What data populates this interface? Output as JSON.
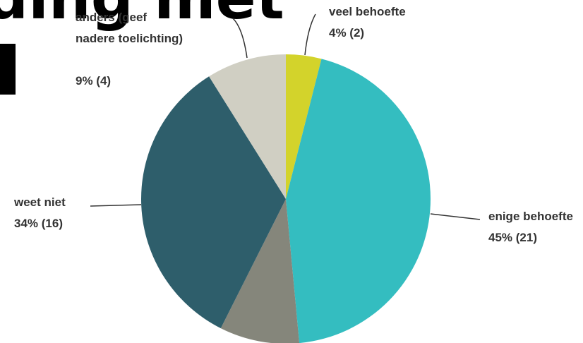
{
  "heading": "ding met",
  "chart_data": {
    "type": "pie",
    "categories": [
      "veel behoefte",
      "enige behoefte",
      null,
      "weet niet",
      "anders (geef nadere toelichting)"
    ],
    "values": [
      4,
      45,
      9,
      34,
      9
    ],
    "value_labels": [
      "4% (2)",
      "45% (21)",
      null,
      "34% (16)",
      "9% (4)"
    ],
    "colors": [
      "#d3d32b",
      "#34bdc0",
      "#85867b",
      "#2e5e6b",
      "#d0cfc3"
    ]
  }
}
